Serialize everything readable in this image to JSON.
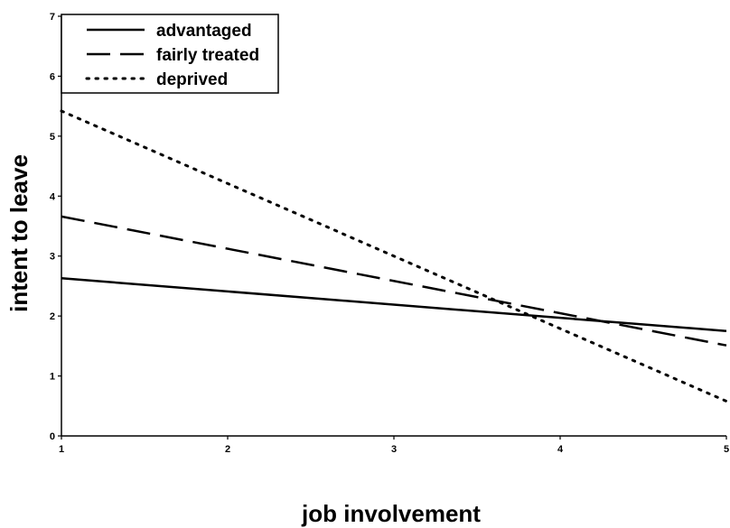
{
  "chart_data": {
    "type": "line",
    "title": "",
    "xlabel": "job involvement",
    "ylabel": "intent to leave",
    "xlim": [
      1,
      5
    ],
    "ylim": [
      0,
      7
    ],
    "xticks": [
      1,
      2,
      3,
      4,
      5
    ],
    "yticks": [
      0,
      1,
      2,
      3,
      4,
      5,
      6,
      7
    ],
    "grid": false,
    "legend_position": "top-left",
    "x": [
      1,
      5
    ],
    "series": [
      {
        "name": "advantaged",
        "values": [
          2.63,
          1.75
        ],
        "style": "solid",
        "color": "#000000"
      },
      {
        "name": "fairly treated",
        "values": [
          3.66,
          1.51
        ],
        "style": "dashed",
        "color": "#000000"
      },
      {
        "name": "deprived",
        "values": [
          5.42,
          0.58
        ],
        "style": "dotted",
        "color": "#000000"
      }
    ]
  }
}
